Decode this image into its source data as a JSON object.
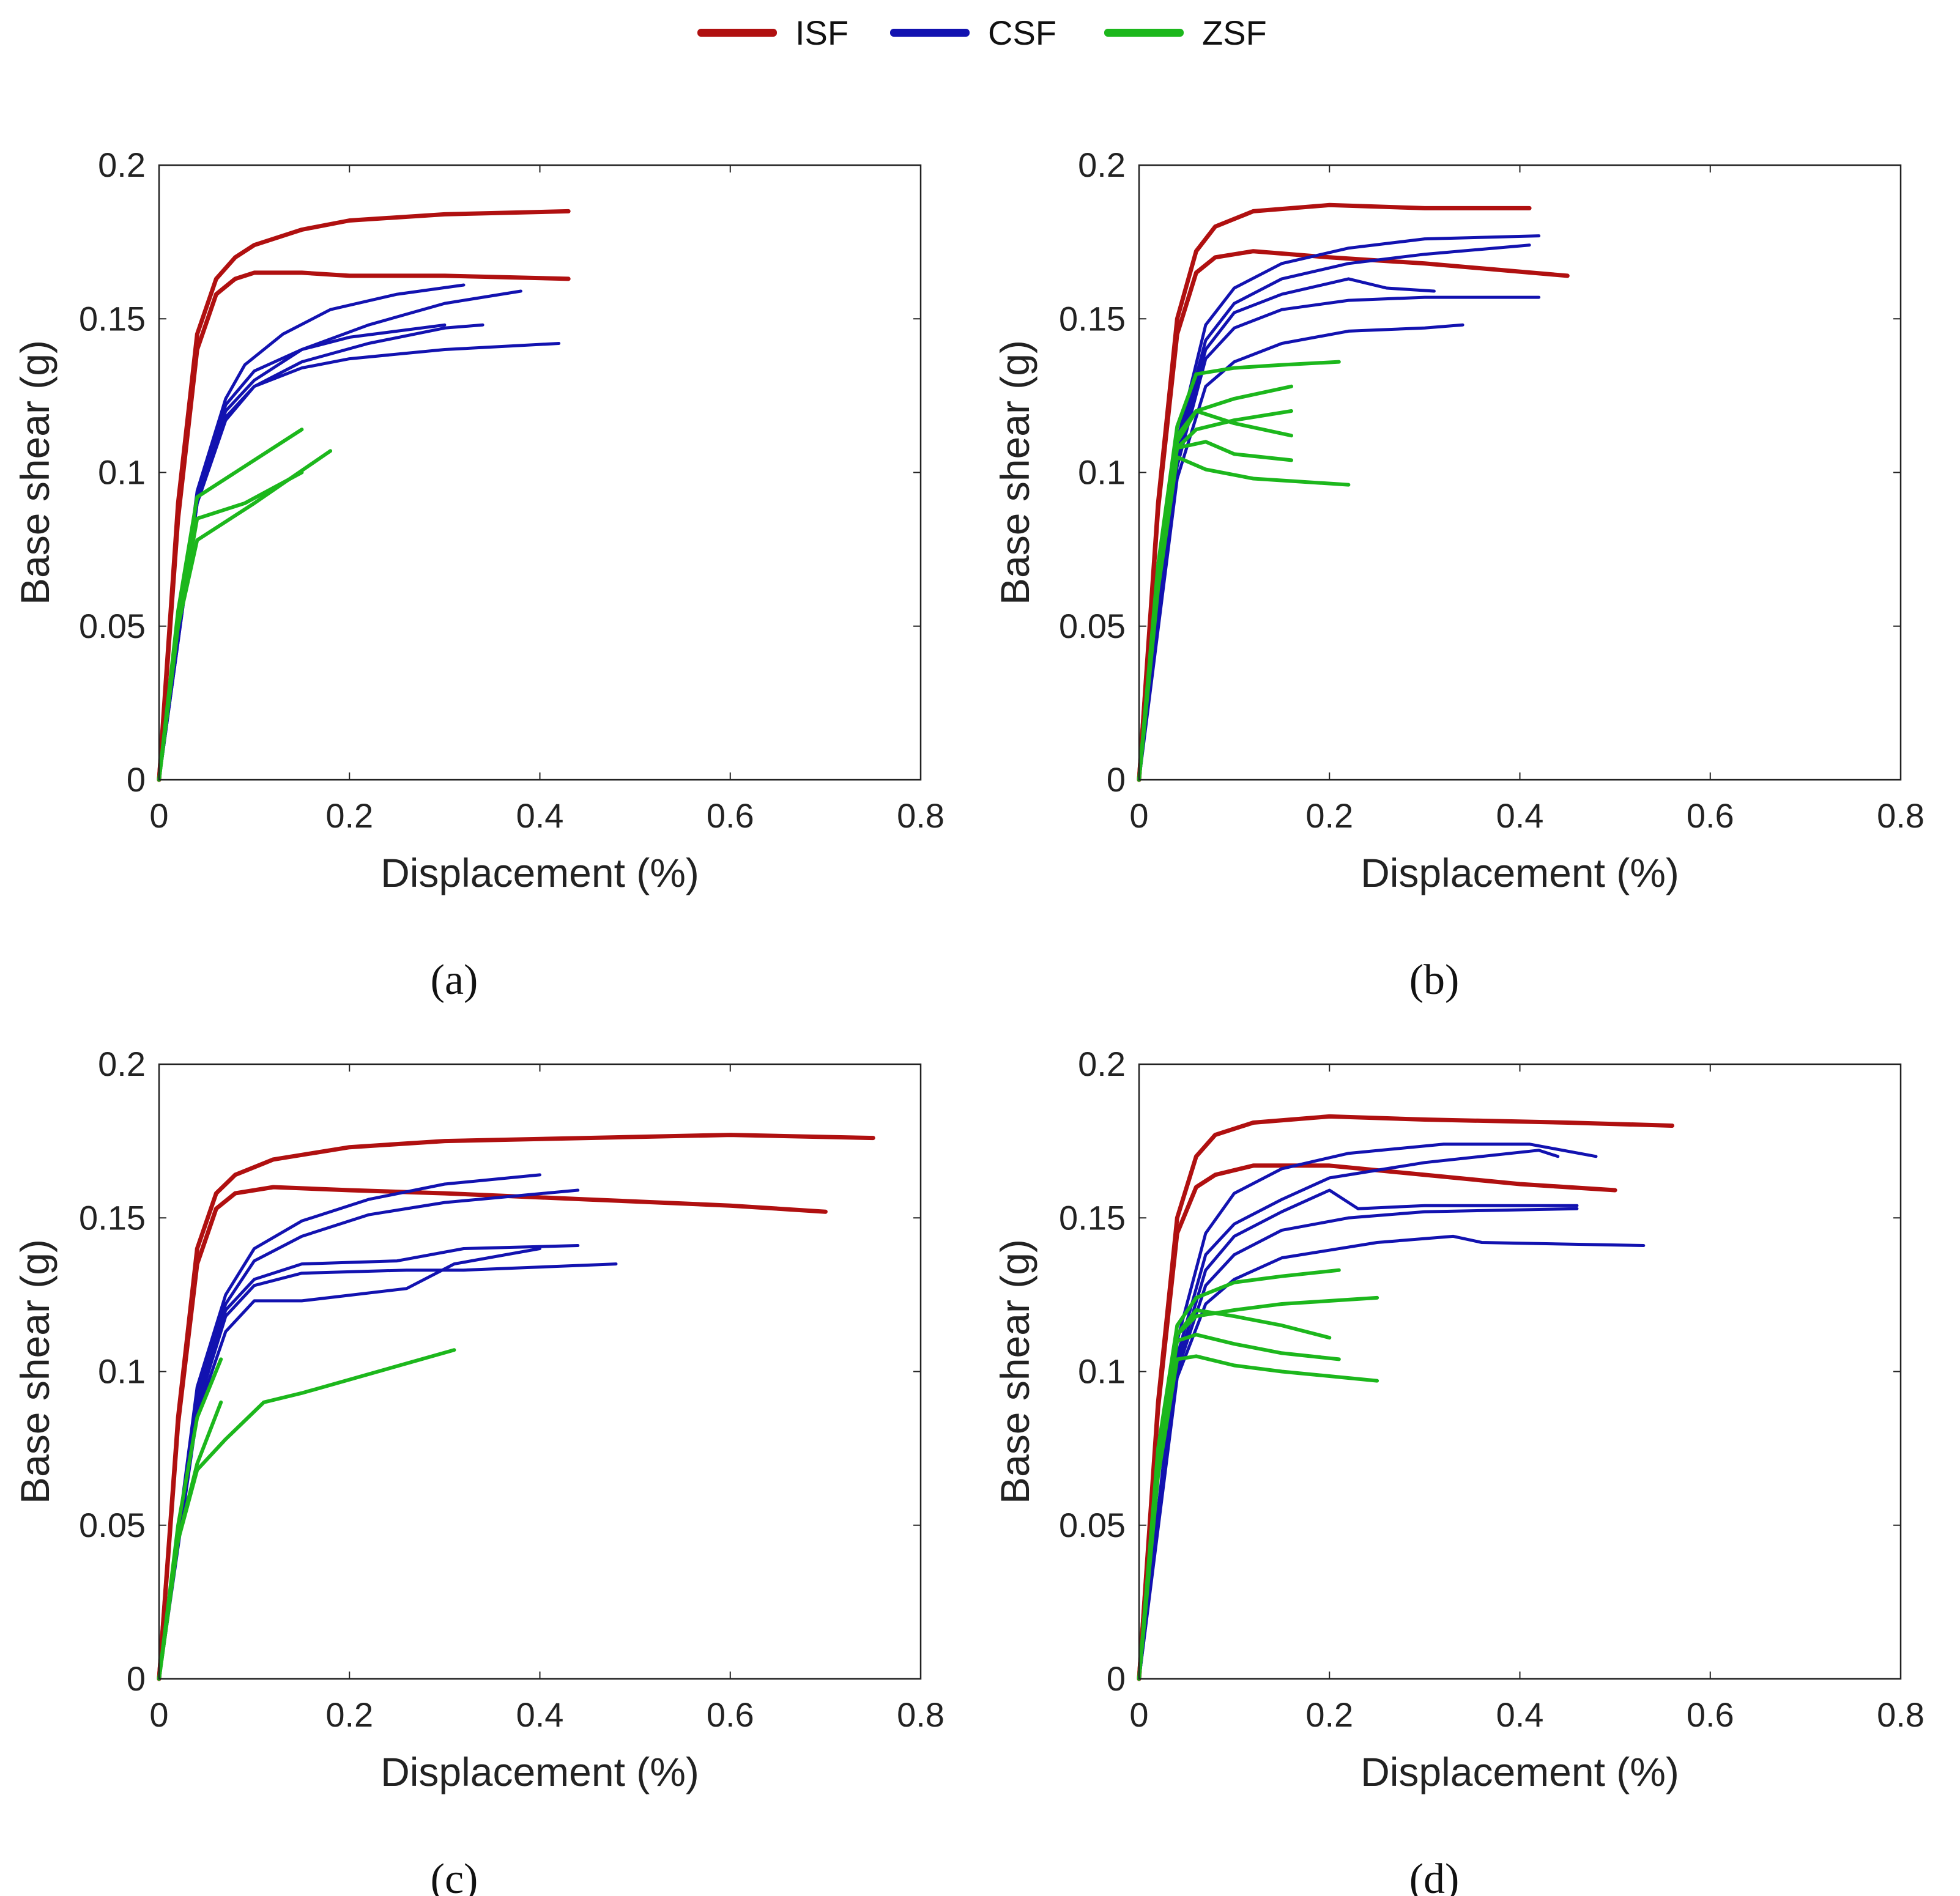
{
  "legend": [
    {
      "label": "ISF",
      "color": "#b01010"
    },
    {
      "label": "CSF",
      "color": "#1212b0"
    },
    {
      "label": "ZSF",
      "color": "#1cb71c"
    }
  ],
  "chart_data": [
    {
      "type": "line",
      "caption": "(a)",
      "xlabel": "Displacement (%)",
      "ylabel": "Base shear (g)",
      "xlim": [
        0,
        0.8
      ],
      "ylim": [
        0,
        0.2
      ],
      "xticks": [
        "0",
        "0.2",
        "0.4",
        "0.6",
        "0.8"
      ],
      "yticks": [
        "0",
        "0.05",
        "0.1",
        "0.15",
        "0.2"
      ],
      "grid": false,
      "series": [
        {
          "group": "ISF",
          "x": [
            0,
            0.02,
            0.04,
            0.06,
            0.08,
            0.1,
            0.15,
            0.2,
            0.3,
            0.43
          ],
          "y": [
            0,
            0.09,
            0.145,
            0.163,
            0.17,
            0.174,
            0.179,
            0.182,
            0.184,
            0.185
          ]
        },
        {
          "group": "ISF",
          "x": [
            0,
            0.02,
            0.04,
            0.06,
            0.08,
            0.1,
            0.15,
            0.2,
            0.3,
            0.43
          ],
          "y": [
            0,
            0.085,
            0.14,
            0.158,
            0.163,
            0.165,
            0.165,
            0.164,
            0.164,
            0.163
          ]
        },
        {
          "group": "CSF",
          "x": [
            0,
            0.04,
            0.07,
            0.09,
            0.13,
            0.18,
            0.25,
            0.32
          ],
          "y": [
            0,
            0.094,
            0.124,
            0.135,
            0.145,
            0.153,
            0.158,
            0.161
          ]
        },
        {
          "group": "CSF",
          "x": [
            0,
            0.04,
            0.07,
            0.1,
            0.15,
            0.22,
            0.3,
            0.38
          ],
          "y": [
            0,
            0.092,
            0.12,
            0.13,
            0.14,
            0.148,
            0.155,
            0.159
          ]
        },
        {
          "group": "CSF",
          "x": [
            0,
            0.04,
            0.07,
            0.1,
            0.15,
            0.22,
            0.3,
            0.34
          ],
          "y": [
            0,
            0.09,
            0.118,
            0.128,
            0.136,
            0.142,
            0.147,
            0.148
          ]
        },
        {
          "group": "CSF",
          "x": [
            0,
            0.04,
            0.07,
            0.1,
            0.15,
            0.2,
            0.3,
            0.42
          ],
          "y": [
            0,
            0.09,
            0.117,
            0.128,
            0.134,
            0.137,
            0.14,
            0.142
          ]
        },
        {
          "group": "CSF",
          "x": [
            0,
            0.04,
            0.07,
            0.1,
            0.15,
            0.2,
            0.3
          ],
          "y": [
            0,
            0.091,
            0.122,
            0.133,
            0.14,
            0.144,
            0.148
          ]
        },
        {
          "group": "ZSF",
          "x": [
            0,
            0.02,
            0.04,
            0.08,
            0.15
          ],
          "y": [
            0,
            0.055,
            0.092,
            0.1,
            0.114
          ]
        },
        {
          "group": "ZSF",
          "x": [
            0,
            0.02,
            0.04,
            0.1,
            0.18
          ],
          "y": [
            0,
            0.05,
            0.078,
            0.09,
            0.107
          ]
        },
        {
          "group": "ZSF",
          "x": [
            0,
            0.02,
            0.04,
            0.09,
            0.15
          ],
          "y": [
            0,
            0.05,
            0.085,
            0.09,
            0.1
          ]
        }
      ]
    },
    {
      "type": "line",
      "caption": "(b)",
      "xlabel": "Displacement (%)",
      "ylabel": "Base shear (g)",
      "xlim": [
        0,
        0.8
      ],
      "ylim": [
        0,
        0.2
      ],
      "xticks": [
        "0",
        "0.2",
        "0.4",
        "0.6",
        "0.8"
      ],
      "yticks": [
        "0",
        "0.05",
        "0.1",
        "0.15",
        "0.2"
      ],
      "grid": false,
      "series": [
        {
          "group": "ISF",
          "x": [
            0,
            0.02,
            0.04,
            0.06,
            0.08,
            0.12,
            0.2,
            0.3,
            0.41
          ],
          "y": [
            0,
            0.09,
            0.15,
            0.172,
            0.18,
            0.185,
            0.187,
            0.186,
            0.186
          ]
        },
        {
          "group": "ISF",
          "x": [
            0,
            0.02,
            0.04,
            0.06,
            0.08,
            0.12,
            0.2,
            0.3,
            0.45
          ],
          "y": [
            0,
            0.088,
            0.145,
            0.165,
            0.17,
            0.172,
            0.17,
            0.168,
            0.164
          ]
        },
        {
          "group": "CSF",
          "x": [
            0,
            0.04,
            0.07,
            0.1,
            0.15,
            0.22,
            0.3,
            0.42
          ],
          "y": [
            0,
            0.11,
            0.148,
            0.16,
            0.168,
            0.173,
            0.176,
            0.177
          ]
        },
        {
          "group": "CSF",
          "x": [
            0,
            0.04,
            0.07,
            0.1,
            0.15,
            0.22,
            0.3,
            0.41
          ],
          "y": [
            0,
            0.108,
            0.143,
            0.155,
            0.163,
            0.168,
            0.171,
            0.174
          ]
        },
        {
          "group": "CSF",
          "x": [
            0,
            0.04,
            0.07,
            0.1,
            0.15,
            0.22,
            0.26,
            0.31
          ],
          "y": [
            0,
            0.105,
            0.14,
            0.152,
            0.158,
            0.163,
            0.16,
            0.159
          ]
        },
        {
          "group": "CSF",
          "x": [
            0,
            0.04,
            0.07,
            0.1,
            0.15,
            0.22,
            0.3,
            0.42
          ],
          "y": [
            0,
            0.102,
            0.137,
            0.147,
            0.153,
            0.156,
            0.157,
            0.157
          ]
        },
        {
          "group": "CSF",
          "x": [
            0,
            0.04,
            0.07,
            0.1,
            0.15,
            0.22,
            0.3,
            0.34
          ],
          "y": [
            0,
            0.098,
            0.128,
            0.136,
            0.142,
            0.146,
            0.147,
            0.148
          ]
        },
        {
          "group": "ZSF",
          "x": [
            0,
            0.02,
            0.04,
            0.06,
            0.1,
            0.15,
            0.21
          ],
          "y": [
            0,
            0.07,
            0.115,
            0.132,
            0.134,
            0.135,
            0.136
          ]
        },
        {
          "group": "ZSF",
          "x": [
            0,
            0.02,
            0.04,
            0.06,
            0.1,
            0.16
          ],
          "y": [
            0,
            0.068,
            0.112,
            0.12,
            0.124,
            0.128
          ]
        },
        {
          "group": "ZSF",
          "x": [
            0,
            0.02,
            0.04,
            0.06,
            0.1,
            0.16
          ],
          "y": [
            0,
            0.066,
            0.108,
            0.114,
            0.117,
            0.12
          ]
        },
        {
          "group": "ZSF",
          "x": [
            0,
            0.02,
            0.04,
            0.06,
            0.1,
            0.16
          ],
          "y": [
            0,
            0.065,
            0.11,
            0.12,
            0.116,
            0.112
          ]
        },
        {
          "group": "ZSF",
          "x": [
            0,
            0.02,
            0.04,
            0.07,
            0.1,
            0.16
          ],
          "y": [
            0,
            0.064,
            0.108,
            0.11,
            0.106,
            0.104
          ]
        },
        {
          "group": "ZSF",
          "x": [
            0,
            0.02,
            0.04,
            0.07,
            0.12,
            0.22
          ],
          "y": [
            0,
            0.062,
            0.105,
            0.101,
            0.098,
            0.096
          ]
        }
      ]
    },
    {
      "type": "line",
      "caption": "(c)",
      "xlabel": "Displacement (%)",
      "ylabel": "Base shear (g)",
      "xlim": [
        0,
        0.8
      ],
      "ylim": [
        0,
        0.2
      ],
      "xticks": [
        "0",
        "0.2",
        "0.4",
        "0.6",
        "0.8"
      ],
      "yticks": [
        "0",
        "0.05",
        "0.1",
        "0.15",
        "0.2"
      ],
      "grid": false,
      "series": [
        {
          "group": "ISF",
          "x": [
            0,
            0.02,
            0.04,
            0.06,
            0.08,
            0.12,
            0.2,
            0.3,
            0.45,
            0.6,
            0.75
          ],
          "y": [
            0,
            0.085,
            0.14,
            0.158,
            0.164,
            0.169,
            0.173,
            0.175,
            0.176,
            0.177,
            0.176
          ]
        },
        {
          "group": "ISF",
          "x": [
            0,
            0.02,
            0.04,
            0.06,
            0.08,
            0.12,
            0.2,
            0.3,
            0.45,
            0.6,
            0.7
          ],
          "y": [
            0,
            0.083,
            0.135,
            0.153,
            0.158,
            0.16,
            0.159,
            0.158,
            0.156,
            0.154,
            0.152
          ]
        },
        {
          "group": "CSF",
          "x": [
            0,
            0.04,
            0.07,
            0.1,
            0.15,
            0.22,
            0.3,
            0.4
          ],
          "y": [
            0,
            0.095,
            0.125,
            0.14,
            0.149,
            0.156,
            0.161,
            0.164
          ]
        },
        {
          "group": "CSF",
          "x": [
            0,
            0.04,
            0.07,
            0.1,
            0.15,
            0.22,
            0.3,
            0.44
          ],
          "y": [
            0,
            0.093,
            0.122,
            0.136,
            0.144,
            0.151,
            0.155,
            0.159
          ]
        },
        {
          "group": "CSF",
          "x": [
            0,
            0.04,
            0.07,
            0.1,
            0.15,
            0.25,
            0.32,
            0.44
          ],
          "y": [
            0,
            0.09,
            0.12,
            0.13,
            0.135,
            0.136,
            0.14,
            0.141
          ]
        },
        {
          "group": "CSF",
          "x": [
            0,
            0.04,
            0.07,
            0.1,
            0.15,
            0.26,
            0.32,
            0.48
          ],
          "y": [
            0,
            0.088,
            0.118,
            0.128,
            0.132,
            0.133,
            0.133,
            0.135
          ]
        },
        {
          "group": "CSF",
          "x": [
            0,
            0.04,
            0.07,
            0.1,
            0.15,
            0.26,
            0.31,
            0.4
          ],
          "y": [
            0,
            0.086,
            0.113,
            0.123,
            0.123,
            0.127,
            0.135,
            0.14
          ]
        },
        {
          "group": "ZSF",
          "x": [
            0,
            0.02,
            0.04,
            0.07,
            0.11,
            0.15,
            0.31
          ],
          "y": [
            0,
            0.045,
            0.068,
            0.078,
            0.09,
            0.093,
            0.107
          ]
        },
        {
          "group": "ZSF",
          "x": [
            0,
            0.02,
            0.04,
            0.065
          ],
          "y": [
            0,
            0.05,
            0.085,
            0.104
          ]
        },
        {
          "group": "ZSF",
          "x": [
            0,
            0.02,
            0.04,
            0.065
          ],
          "y": [
            0,
            0.045,
            0.07,
            0.09
          ]
        }
      ]
    },
    {
      "type": "line",
      "caption": "(d)",
      "xlabel": "Displacement (%)",
      "ylabel": "Base shear (g)",
      "xlim": [
        0,
        0.8
      ],
      "ylim": [
        0,
        0.2
      ],
      "xticks": [
        "0",
        "0.2",
        "0.4",
        "0.6",
        "0.8"
      ],
      "yticks": [
        "0",
        "0.05",
        "0.1",
        "0.15",
        "0.2"
      ],
      "grid": false,
      "series": [
        {
          "group": "ISF",
          "x": [
            0,
            0.02,
            0.04,
            0.06,
            0.08,
            0.12,
            0.2,
            0.3,
            0.45,
            0.56
          ],
          "y": [
            0,
            0.09,
            0.15,
            0.17,
            0.177,
            0.181,
            0.183,
            0.182,
            0.181,
            0.18
          ]
        },
        {
          "group": "ISF",
          "x": [
            0,
            0.02,
            0.04,
            0.06,
            0.08,
            0.12,
            0.2,
            0.3,
            0.4,
            0.5
          ],
          "y": [
            0,
            0.088,
            0.145,
            0.16,
            0.164,
            0.167,
            0.167,
            0.164,
            0.161,
            0.159
          ]
        },
        {
          "group": "CSF",
          "x": [
            0,
            0.04,
            0.07,
            0.1,
            0.15,
            0.22,
            0.32,
            0.41,
            0.48
          ],
          "y": [
            0,
            0.11,
            0.145,
            0.158,
            0.166,
            0.171,
            0.174,
            0.174,
            0.17
          ]
        },
        {
          "group": "CSF",
          "x": [
            0,
            0.04,
            0.07,
            0.1,
            0.15,
            0.2,
            0.3,
            0.42,
            0.44
          ],
          "y": [
            0,
            0.105,
            0.138,
            0.148,
            0.156,
            0.163,
            0.168,
            0.172,
            0.17
          ]
        },
        {
          "group": "CSF",
          "x": [
            0,
            0.04,
            0.07,
            0.1,
            0.15,
            0.2,
            0.23,
            0.3,
            0.46
          ],
          "y": [
            0,
            0.102,
            0.133,
            0.144,
            0.152,
            0.159,
            0.153,
            0.154,
            0.154
          ]
        },
        {
          "group": "CSF",
          "x": [
            0,
            0.04,
            0.07,
            0.1,
            0.15,
            0.22,
            0.3,
            0.46
          ],
          "y": [
            0,
            0.1,
            0.128,
            0.138,
            0.146,
            0.15,
            0.152,
            0.153
          ]
        },
        {
          "group": "CSF",
          "x": [
            0,
            0.04,
            0.07,
            0.1,
            0.15,
            0.25,
            0.33,
            0.36,
            0.53
          ],
          "y": [
            0,
            0.098,
            0.122,
            0.13,
            0.137,
            0.142,
            0.144,
            0.142,
            0.141
          ]
        },
        {
          "group": "ZSF",
          "x": [
            0,
            0.02,
            0.04,
            0.06,
            0.1,
            0.15,
            0.21
          ],
          "y": [
            0,
            0.075,
            0.115,
            0.124,
            0.129,
            0.131,
            0.133
          ]
        },
        {
          "group": "ZSF",
          "x": [
            0,
            0.02,
            0.04,
            0.06,
            0.1,
            0.15,
            0.25
          ],
          "y": [
            0,
            0.072,
            0.112,
            0.118,
            0.12,
            0.122,
            0.124
          ]
        },
        {
          "group": "ZSF",
          "x": [
            0,
            0.02,
            0.04,
            0.06,
            0.1,
            0.15,
            0.2
          ],
          "y": [
            0,
            0.07,
            0.112,
            0.12,
            0.118,
            0.115,
            0.111
          ]
        },
        {
          "group": "ZSF",
          "x": [
            0,
            0.02,
            0.04,
            0.06,
            0.1,
            0.15,
            0.21
          ],
          "y": [
            0,
            0.068,
            0.11,
            0.112,
            0.109,
            0.106,
            0.104
          ]
        },
        {
          "group": "ZSF",
          "x": [
            0,
            0.02,
            0.04,
            0.06,
            0.1,
            0.15,
            0.25
          ],
          "y": [
            0,
            0.066,
            0.104,
            0.105,
            0.102,
            0.1,
            0.097
          ]
        }
      ]
    }
  ]
}
